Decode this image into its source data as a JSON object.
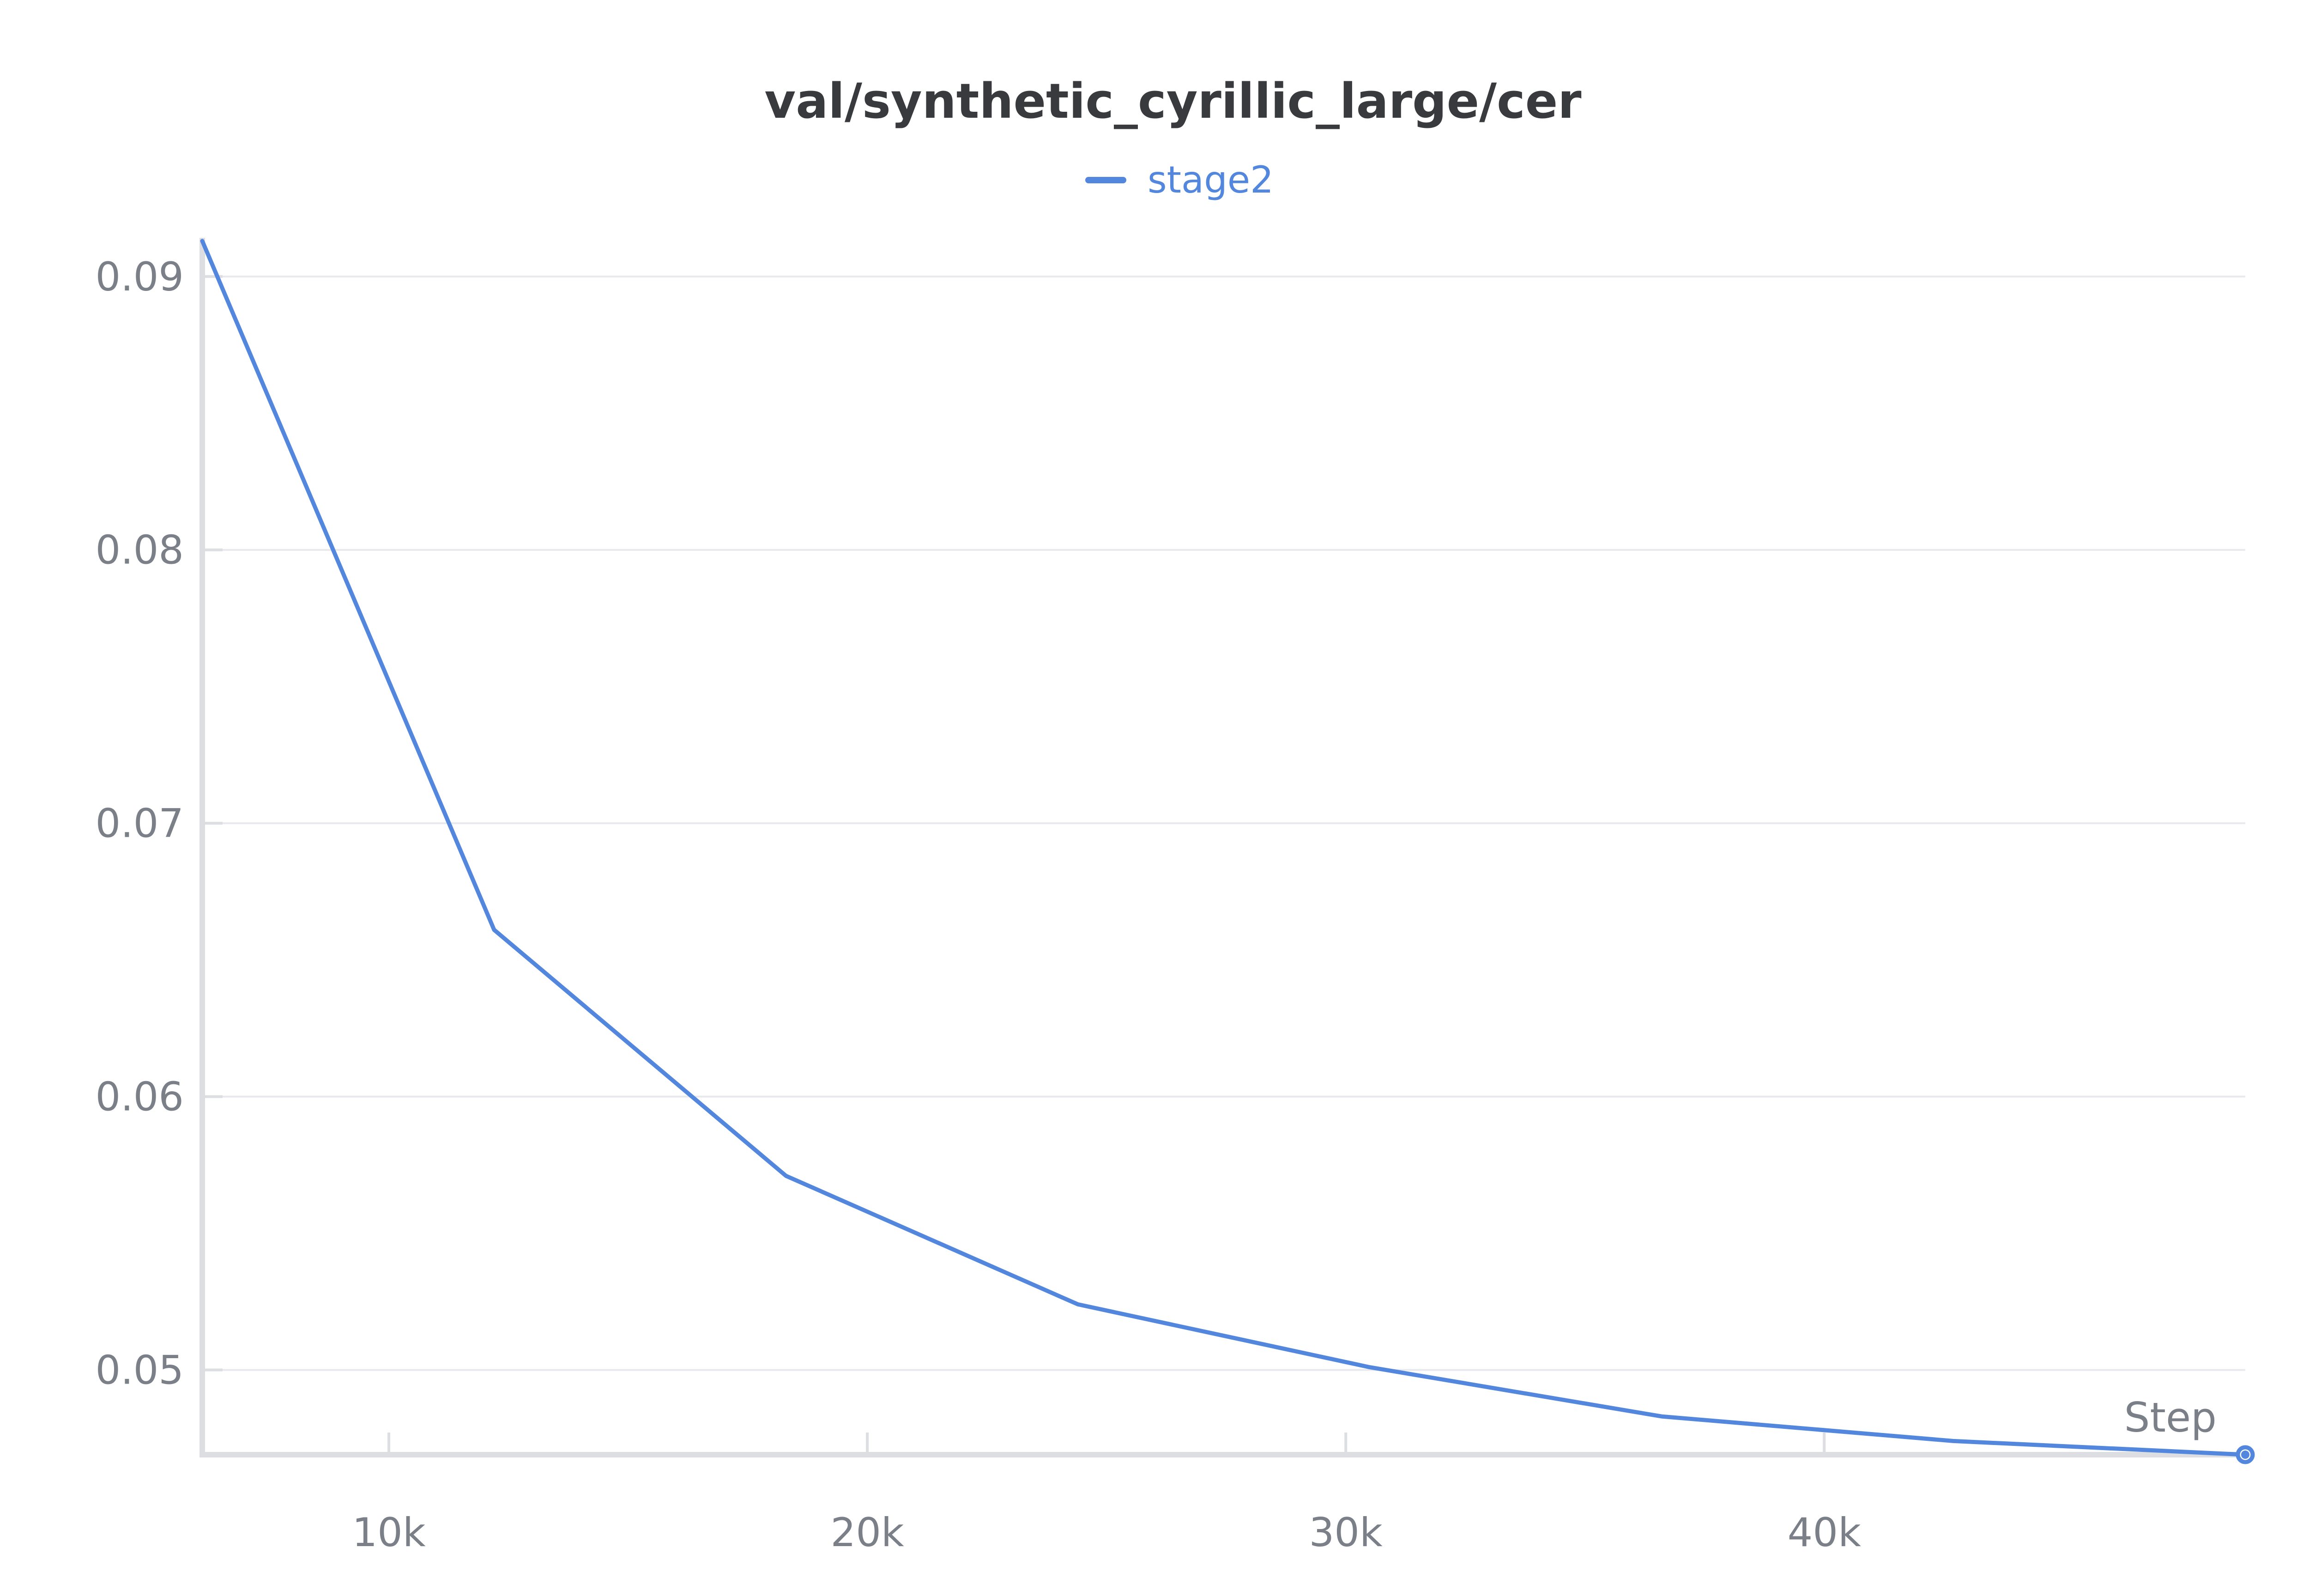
{
  "chart_data": {
    "type": "line",
    "title": "val/synthetic_cyrillic_large/cer",
    "xlabel": "Step",
    "ylabel": "",
    "xlim": [
      6100,
      48800
    ],
    "ylim": [
      0.0469,
      0.0915
    ],
    "x_ticks": [
      {
        "value": 10000,
        "label": "10k"
      },
      {
        "value": 20000,
        "label": "20k"
      },
      {
        "value": 30000,
        "label": "30k"
      },
      {
        "value": 40000,
        "label": "40k"
      }
    ],
    "y_ticks": [
      {
        "value": 0.05,
        "label": "0.05"
      },
      {
        "value": 0.06,
        "label": "0.06"
      },
      {
        "value": 0.07,
        "label": "0.07"
      },
      {
        "value": 0.08,
        "label": "0.08"
      },
      {
        "value": 0.09,
        "label": "0.09"
      }
    ],
    "grid": true,
    "legend_position": "top-center",
    "series": [
      {
        "name": "stage2",
        "color": "#5387dd",
        "x": [
          6100,
          12200,
          18300,
          24400,
          30500,
          36600,
          42700,
          48800
        ],
        "y": [
          0.0913,
          0.0661,
          0.0571,
          0.0524,
          0.0501,
          0.0483,
          0.0474,
          0.0469
        ]
      }
    ]
  }
}
